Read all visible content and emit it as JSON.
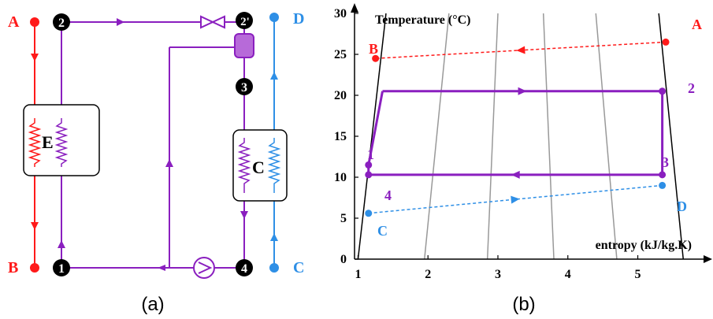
{
  "panel_a": {
    "caption": "(a)",
    "state_points": [
      "1",
      "2",
      "2'",
      "3",
      "4"
    ],
    "port_labels": {
      "A": "A",
      "B": "B",
      "C": "C",
      "D": "D"
    },
    "components": {
      "evaporator": "E",
      "condenser": "C"
    },
    "colors": {
      "hot_stream": "#ff1a1a",
      "working_fluid": "#8a1fbf",
      "cold_stream": "#2e8fe6"
    },
    "icons": [
      "expansion-valve-icon",
      "pump-icon",
      "separator-icon",
      "heat-exchanger-coil-icon",
      "flow-arrow-icon"
    ]
  },
  "panel_b": {
    "caption": "(b)",
    "chart_data": {
      "type": "line",
      "title": "",
      "xlabel": "entropy (kJ/kg.K)",
      "ylabel": "Temperature (°C)",
      "xlim": [
        0.95,
        5.85
      ],
      "ylim": [
        0,
        30
      ],
      "xticks": [
        1,
        2,
        3,
        4,
        5
      ],
      "yticks": [
        0,
        5,
        10,
        15,
        20,
        25,
        30
      ],
      "grid": false,
      "point_labels": {
        "A": "A",
        "B": "B",
        "C": "C",
        "D": "D",
        "p1": "1",
        "p2": "2",
        "p3": "3",
        "p4": "4"
      },
      "series": [
        {
          "color": "#8a1fbf",
          "style": "solid",
          "arrow_at": [
            0.5,
            0.5
          ],
          "points": [
            [
              1.35,
              20.5
            ],
            [
              5.35,
              20.5
            ],
            [
              5.35,
              10.3
            ],
            [
              1.15,
              10.3
            ],
            [
              1.15,
              11.5
            ],
            [
              1.35,
              20.5
            ]
          ]
        },
        {
          "color": "#ff1a1a",
          "style": "dashed",
          "arrow_at": [
            0.5
          ],
          "points": [
            [
              5.4,
              26.5
            ],
            [
              1.25,
              24.5
            ]
          ]
        },
        {
          "color": "#2e8fe6",
          "style": "dashed",
          "arrow_at": [
            0.5
          ],
          "points": [
            [
              1.15,
              5.6
            ],
            [
              5.35,
              9.0
            ]
          ]
        }
      ],
      "markers": [
        {
          "label": "A",
          "x": 5.4,
          "y": 26.5,
          "color": "#ff1a1a"
        },
        {
          "label": "B",
          "x": 1.25,
          "y": 24.5,
          "color": "#ff1a1a"
        },
        {
          "label": "C",
          "x": 1.15,
          "y": 5.6,
          "color": "#2e8fe6"
        },
        {
          "label": "D",
          "x": 5.35,
          "y": 9.0,
          "color": "#2e8fe6"
        },
        {
          "label": "1",
          "x": 1.15,
          "y": 11.5,
          "color": "#8a1fbf"
        },
        {
          "label": "2",
          "x": 5.35,
          "y": 20.5,
          "color": "#8a1fbf"
        },
        {
          "label": "3",
          "x": 5.35,
          "y": 10.3,
          "color": "#8a1fbf"
        },
        {
          "label": "4",
          "x": 1.15,
          "y": 10.3,
          "color": "#8a1fbf"
        }
      ],
      "saturation_dome": {
        "color": "#000000",
        "left": [
          [
            1.0,
            0
          ],
          [
            1.4,
            30
          ]
        ],
        "right": [
          [
            5.65,
            0
          ],
          [
            5.3,
            30
          ]
        ]
      },
      "isobars": {
        "color": "#999999",
        "lines": [
          [
            [
              1.95,
              0
            ],
            [
              2.3,
              30
            ]
          ],
          [
            [
              2.85,
              0
            ],
            [
              3.0,
              30
            ]
          ],
          [
            [
              3.8,
              0
            ],
            [
              3.65,
              30
            ]
          ],
          [
            [
              4.7,
              0
            ],
            [
              4.4,
              30
            ]
          ]
        ]
      }
    }
  }
}
